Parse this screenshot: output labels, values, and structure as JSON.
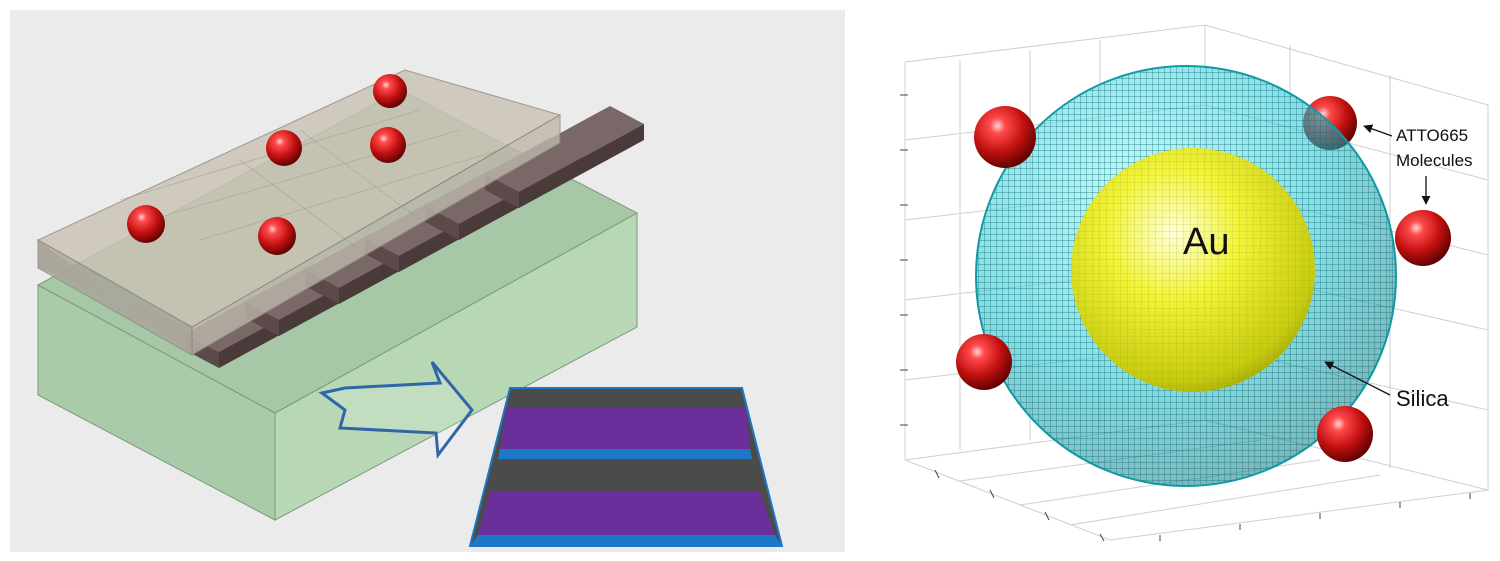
{
  "figure": {
    "left_panel": {
      "background": "#ebebeb",
      "substrate_color": "#a6c8a6",
      "grating_color": "#5c4a4a",
      "superstrate_color": "#c9bfb2",
      "molecule_color": "#c41010",
      "arrow_color": "#2f66a8",
      "inset": {
        "stripe_colors": [
          "#4b4b4b",
          "#6a2f9a",
          "#1e78c8"
        ]
      }
    },
    "right_panel": {
      "shell_color": "#12c8d6",
      "core_color": "#e6ea1a",
      "molecule_color": "#d21010",
      "core_label": "Au",
      "shell_label": "Silica",
      "molecule_label_line1": "ATTO665",
      "molecule_label_line2": "Molecules"
    }
  }
}
